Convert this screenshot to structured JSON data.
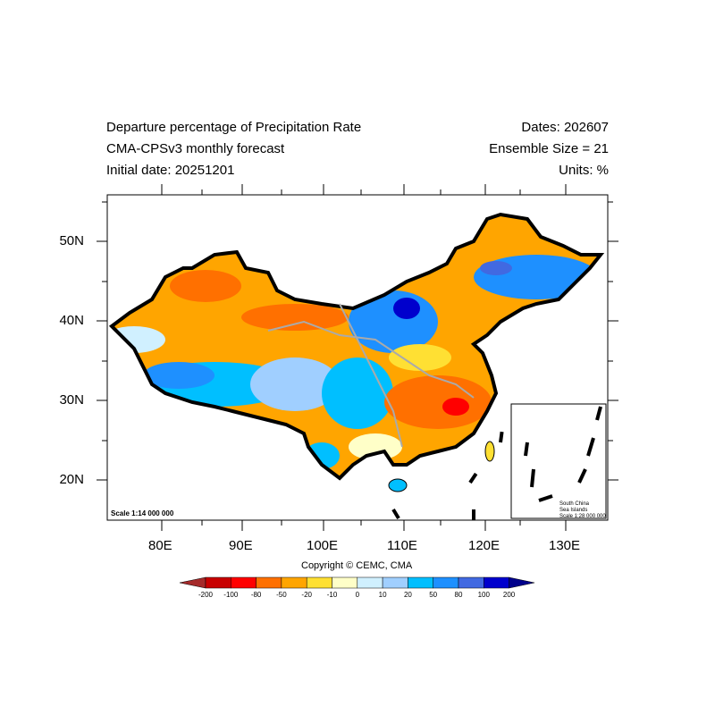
{
  "header": {
    "left": [
      "Departure percentage of Precipitation Rate",
      "CMA-CPSv3 monthly forecast",
      "Initial date: 20251201"
    ],
    "right": [
      "Dates: 202607",
      "Ensemble Size = 21",
      "Units: %"
    ]
  },
  "map": {
    "lat_labels": [
      "50N",
      "40N",
      "30N",
      "20N"
    ],
    "lon_labels": [
      "80E",
      "90E",
      "100E",
      "110E",
      "120E",
      "130E"
    ],
    "lon_range": [
      73.3,
      135.2
    ],
    "lat_range": [
      15,
      55.8
    ],
    "scale_text": "Scale 1:14 000 000",
    "inset": {
      "lines": [
        "South China",
        "Sea Islands",
        "Scale 1:28 000 000"
      ]
    }
  },
  "copyright": "Copyright © CEMC, CMA",
  "colorbar": {
    "labels": [
      "-200",
      "-100",
      "-80",
      "-50",
      "-20",
      "-10",
      "0",
      "10",
      "20",
      "50",
      "80",
      "100",
      "200"
    ],
    "colors": [
      "#a52a2a",
      "#c80000",
      "#ff0000",
      "#ff7000",
      "#ffa500",
      "#ffe033",
      "#ffffc8",
      "#d0f0ff",
      "#a0cfff",
      "#00bfff",
      "#1e90ff",
      "#4169e1",
      "#0000cd",
      "#00008b"
    ]
  }
}
